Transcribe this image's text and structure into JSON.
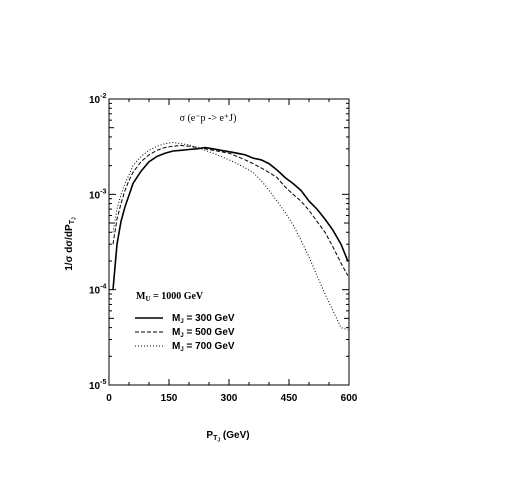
{
  "chart_data": {
    "type": "line",
    "title": "σ (e⁻p -> e⁺J)",
    "xlabel": "P",
    "xlabel_sub": "T",
    "xlabel_subsub": "J",
    "xlabel_unit": "(GeV)",
    "ylabel": "1/σ dσ/dP",
    "ylabel_sub": "T",
    "ylabel_subsub": "J",
    "x_scale": "linear",
    "y_scale": "log",
    "xlim": [
      0,
      600
    ],
    "ylim": [
      1e-05,
      0.01
    ],
    "x_ticks": [
      0,
      150,
      300,
      450,
      600
    ],
    "x_tick_labels": [
      "0",
      "150",
      "300",
      "450",
      "600"
    ],
    "y_ticks": [
      1e-05,
      0.0001,
      0.001,
      0.01
    ],
    "y_tick_labels": [
      {
        "base": "10",
        "exp": "-5"
      },
      {
        "base": "10",
        "exp": "-4"
      },
      {
        "base": "10",
        "exp": "-3"
      },
      {
        "base": "10",
        "exp": "-2"
      }
    ],
    "annotation": {
      "main": "M",
      "sub": "U",
      "rest": " = 1000 GeV"
    },
    "legend_position": "lower-left",
    "series": [
      {
        "name": "M",
        "name_sub": "J",
        "name_rest": " = 300 GeV",
        "style": "solid",
        "x": [
          10,
          20,
          30,
          40,
          50,
          60,
          80,
          100,
          120,
          140,
          160,
          180,
          200,
          220,
          240,
          260,
          280,
          300,
          320,
          340,
          360,
          380,
          400,
          420,
          440,
          460,
          480,
          500,
          520,
          540,
          560,
          580,
          597
        ],
        "y": [
          0.0001,
          0.0003,
          0.00052,
          0.00074,
          0.00098,
          0.0013,
          0.00175,
          0.0022,
          0.0025,
          0.0027,
          0.00285,
          0.0029,
          0.00295,
          0.003,
          0.0031,
          0.003,
          0.0029,
          0.0028,
          0.0027,
          0.0026,
          0.0024,
          0.0023,
          0.0021,
          0.0018,
          0.0015,
          0.0013,
          0.0011,
          0.00085,
          0.0007,
          0.00055,
          0.00042,
          0.0003,
          0.0002
        ]
      },
      {
        "name": "M",
        "name_sub": "J",
        "name_rest": " = 500 GeV",
        "style": "dashed",
        "x": [
          10,
          20,
          30,
          40,
          50,
          60,
          80,
          100,
          120,
          140,
          160,
          180,
          200,
          220,
          240,
          260,
          280,
          300,
          320,
          340,
          360,
          380,
          400,
          420,
          440,
          460,
          480,
          500,
          520,
          540,
          560,
          580,
          597
        ],
        "y": [
          0.0003,
          0.00055,
          0.0008,
          0.0011,
          0.0014,
          0.0017,
          0.0022,
          0.0026,
          0.0029,
          0.0031,
          0.0032,
          0.00325,
          0.0032,
          0.0031,
          0.003,
          0.0029,
          0.0028,
          0.0027,
          0.0025,
          0.0023,
          0.0021,
          0.0019,
          0.0017,
          0.0015,
          0.0012,
          0.001,
          0.00085,
          0.00068,
          0.00052,
          0.0004,
          0.00028,
          0.00019,
          0.00014
        ]
      },
      {
        "name": "M",
        "name_sub": "J",
        "name_rest": " = 700 GeV",
        "style": "dotted",
        "x": [
          10,
          20,
          30,
          40,
          50,
          60,
          80,
          100,
          120,
          140,
          160,
          180,
          200,
          220,
          240,
          260,
          280,
          300,
          320,
          340,
          360,
          380,
          400,
          420,
          440,
          460,
          480,
          500,
          520,
          540,
          560,
          580,
          597
        ],
        "y": [
          0.0004,
          0.0007,
          0.001,
          0.0013,
          0.0016,
          0.002,
          0.0025,
          0.0029,
          0.0032,
          0.0034,
          0.0035,
          0.0034,
          0.0033,
          0.0031,
          0.0029,
          0.0027,
          0.0025,
          0.0023,
          0.0021,
          0.0019,
          0.0017,
          0.0014,
          0.0011,
          0.00085,
          0.00065,
          0.00048,
          0.00033,
          0.00022,
          0.00014,
          9e-05,
          6e-05,
          4e-05,
          3.8e-05
        ]
      }
    ]
  }
}
